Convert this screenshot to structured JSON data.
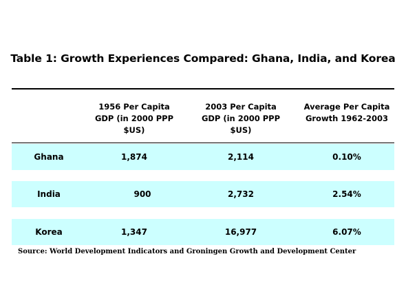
{
  "title": "Table 1: Growth Experiences Compared: Ghana, India, and Korea",
  "table": {
    "headers": [
      "",
      "1956 Per Capita\nGDP (in 2000 PPP\n$US)",
      "2003 Per Capita\nGDP (in 2000 PPP\n$US)",
      "Average Per Capita\nGrowth 1962-2003"
    ],
    "rows": [
      {
        "country": "Ghana",
        "gdp_1956": "1,874",
        "gdp_2003": "2,114",
        "growth": "0.10%"
      },
      {
        "country": "India",
        "gdp_1956": "900",
        "gdp_2003": "2,732",
        "growth": "2.54%"
      },
      {
        "country": "Korea",
        "gdp_1956": "1,347",
        "gdp_2003": "16,977",
        "growth": "6.07%"
      }
    ],
    "row_band_color": "#ccffff"
  },
  "source": "Source: World Development Indicators and Groningen Growth and Development Center"
}
